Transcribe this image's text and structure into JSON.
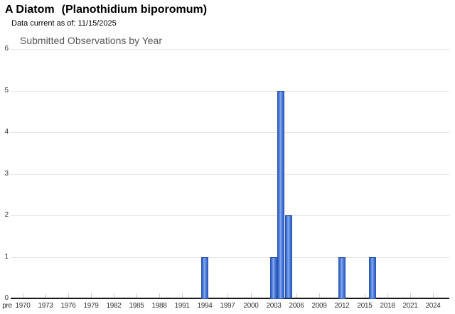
{
  "header": {
    "title_common": "A Diatom",
    "title_scientific": "(Planothidium biporomum)",
    "data_current": "Data current as of: 11/15/2025"
  },
  "chart_data": {
    "type": "bar",
    "title": "Submitted Observations by Year",
    "xlabel": "",
    "ylabel": "",
    "ylim": [
      0,
      6
    ],
    "y_ticks": [
      0,
      1,
      2,
      3,
      4,
      5,
      6
    ],
    "x_tick_labels": [
      "pre",
      "1970",
      "1973",
      "1976",
      "1979",
      "1982",
      "1985",
      "1988",
      "1991",
      "1994",
      "1997",
      "2000",
      "2003",
      "2006",
      "2009",
      "2012",
      "2015",
      "2018",
      "2021",
      "2024"
    ],
    "bars": [
      {
        "year": 1994,
        "value": 1
      },
      {
        "year": 2003,
        "value": 1
      },
      {
        "year": 2004,
        "value": 5
      },
      {
        "year": 2005,
        "value": 2
      },
      {
        "year": 2012,
        "value": 1
      },
      {
        "year": 2016,
        "value": 1
      }
    ],
    "grid_on": true,
    "legend": "none",
    "colors": {
      "bar_fill": "#4a77d6",
      "bar_border": "#2853ae",
      "gridline": "#e6e6e6",
      "axis": "#1a1a1a",
      "tick_label": "#333333",
      "chart_title": "#575757"
    }
  }
}
